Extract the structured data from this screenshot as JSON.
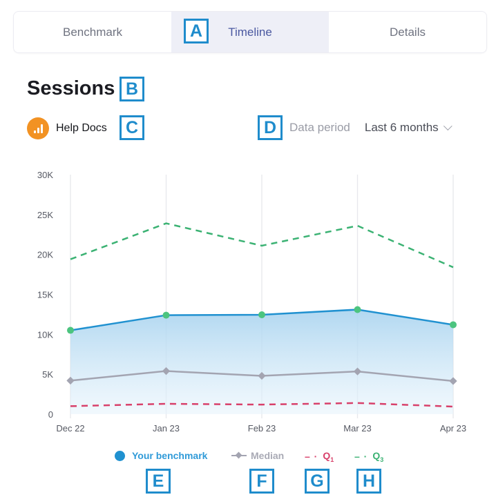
{
  "tabs": [
    {
      "label": "Benchmark",
      "active": false
    },
    {
      "label": "Timeline",
      "active": true
    },
    {
      "label": "Details",
      "active": false
    }
  ],
  "title": "Sessions",
  "source": {
    "label": "Help Docs",
    "icon": "analytics-bar-icon",
    "icon_color": "#f29223"
  },
  "period": {
    "label": "Data period",
    "value": "Last 6 months"
  },
  "chart_data": {
    "type": "line",
    "categories": [
      "Dec 22",
      "Jan 23",
      "Feb 23",
      "Mar 23",
      "Apr 23"
    ],
    "ylim": [
      0,
      30000
    ],
    "yticks": [
      {
        "v": 0,
        "label": "0"
      },
      {
        "v": 5000,
        "label": "5K"
      },
      {
        "v": 10000,
        "label": "10K"
      },
      {
        "v": 15000,
        "label": "15K"
      },
      {
        "v": 20000,
        "label": "20K"
      },
      {
        "v": 25000,
        "label": "25K"
      },
      {
        "v": 30000,
        "label": "30K"
      }
    ],
    "grid": "vertical",
    "legend_position": "bottom",
    "series": [
      {
        "name": "Your benchmark",
        "values": [
          10500,
          12400,
          12450,
          13100,
          11200
        ],
        "color": "#2091d0",
        "style": "area-solid"
      },
      {
        "name": "Median",
        "values": [
          4200,
          5400,
          4800,
          5350,
          4150
        ],
        "color": "#a3a4b1",
        "style": "solid-diamond"
      },
      {
        "name": "Q1",
        "sub": "1",
        "values": [
          1000,
          1300,
          1200,
          1400,
          950
        ],
        "color": "#d8406a",
        "style": "dashed"
      },
      {
        "name": "Q3",
        "sub": "3",
        "values": [
          19400,
          23900,
          21100,
          23600,
          18400
        ],
        "color": "#3bb273",
        "style": "dashed"
      }
    ]
  },
  "markers": [
    "A",
    "B",
    "C",
    "D",
    "E",
    "F",
    "G",
    "H"
  ]
}
